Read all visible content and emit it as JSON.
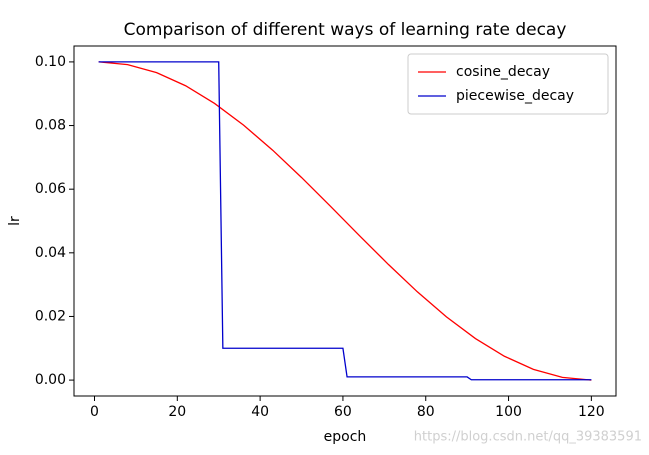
{
  "chart_data": {
    "type": "line",
    "title": "Comparison of different ways of learning rate decay",
    "xlabel": "epoch",
    "ylabel": "lr",
    "annotation": "https://blog.csdn.net/qq_39383591",
    "xlim": [
      -4.95,
      125.95
    ],
    "ylim": [
      -0.005,
      0.105
    ],
    "xticks": [
      0,
      20,
      40,
      60,
      80,
      100,
      120
    ],
    "yticks": [
      {
        "value": 0,
        "label": "0.00"
      },
      {
        "value": 0.02,
        "label": "0.02"
      },
      {
        "value": 0.04,
        "label": "0.04"
      },
      {
        "value": 0.06,
        "label": "0.06"
      },
      {
        "value": 0.08,
        "label": "0.08"
      },
      {
        "value": 0.1,
        "label": "0.10"
      }
    ],
    "legend": "upper right",
    "series": [
      {
        "name": "cosine_decay",
        "color": "#ff0000",
        "x": [
          1,
          8,
          15,
          22,
          29,
          36,
          43,
          50,
          57,
          64,
          71,
          78,
          85,
          92,
          99,
          106,
          113,
          120
        ],
        "values": [
          0.1,
          0.09915,
          0.09662,
          0.09251,
          0.08695,
          0.08013,
          0.07229,
          0.06368,
          0.05461,
          0.04539,
          0.03632,
          0.02771,
          0.01987,
          0.01305,
          0.00749,
          0.00338,
          0.00085,
          0
        ]
      },
      {
        "name": "piecewise_decay",
        "color": "#0000cc",
        "x": [
          1,
          30,
          31,
          60,
          61,
          90,
          91,
          120
        ],
        "values": [
          0.1,
          0.1,
          0.01,
          0.01,
          0.001,
          0.001,
          0.0001,
          0.0001
        ]
      }
    ]
  }
}
